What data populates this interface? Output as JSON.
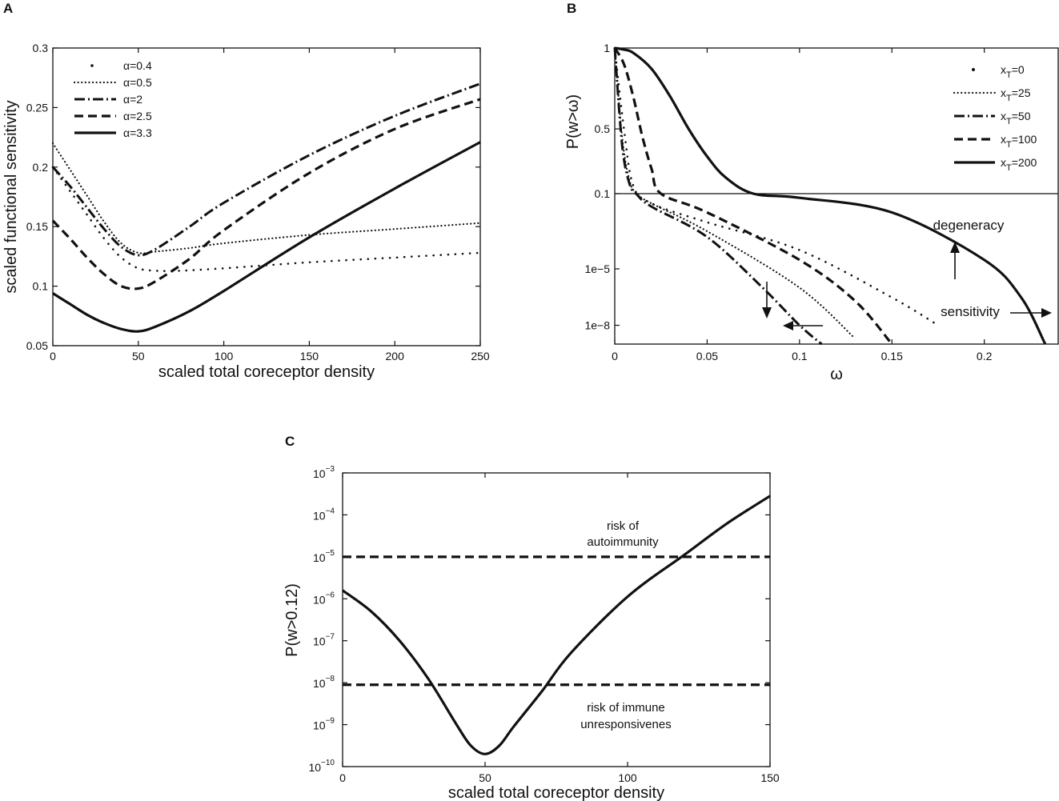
{
  "figure": {
    "labels": [
      "A",
      "B",
      "C"
    ]
  },
  "chart_data": [
    {
      "id": "A",
      "type": "line",
      "xlabel": "scaled total coreceptor density",
      "ylabel": "scaled functional sensitivity",
      "xlim": [
        0,
        250
      ],
      "ylim": [
        0.05,
        0.3
      ],
      "xticks": [
        0,
        50,
        100,
        150,
        200,
        250
      ],
      "yticks": [
        0.05,
        0.1,
        0.15,
        0.2,
        0.25,
        0.3
      ],
      "xticklabels": [
        "0",
        "50",
        "100",
        "150",
        "200",
        "250"
      ],
      "yticklabels": [
        "0.05",
        "0.1",
        "0.15",
        "0.2",
        "0.25",
        "0.3"
      ],
      "legend_position": "top-left",
      "series": [
        {
          "name": "α=0.4",
          "style": "dot",
          "x": [
            0,
            10,
            20,
            30,
            40,
            50,
            60,
            75,
            100,
            150,
            200,
            250
          ],
          "y": [
            0.2,
            0.18,
            0.16,
            0.14,
            0.124,
            0.115,
            0.113,
            0.113,
            0.115,
            0.12,
            0.124,
            0.128
          ]
        },
        {
          "name": "α=0.5",
          "style": "dotted",
          "x": [
            0,
            10,
            20,
            30,
            40,
            50,
            60,
            80,
            100,
            150,
            200,
            250
          ],
          "y": [
            0.22,
            0.198,
            0.176,
            0.154,
            0.136,
            0.128,
            0.129,
            0.132,
            0.136,
            0.143,
            0.148,
            0.153
          ]
        },
        {
          "name": "α=2",
          "style": "dashdot",
          "x": [
            0,
            10,
            20,
            30,
            40,
            50,
            60,
            80,
            100,
            150,
            200,
            250
          ],
          "y": [
            0.2,
            0.184,
            0.166,
            0.148,
            0.133,
            0.126,
            0.131,
            0.15,
            0.17,
            0.21,
            0.243,
            0.27
          ]
        },
        {
          "name": "α=2.5",
          "style": "dashed",
          "x": [
            0,
            10,
            20,
            30,
            40,
            50,
            60,
            80,
            100,
            150,
            200,
            250
          ],
          "y": [
            0.155,
            0.14,
            0.124,
            0.11,
            0.1,
            0.098,
            0.104,
            0.123,
            0.147,
            0.195,
            0.232,
            0.257
          ]
        },
        {
          "name": "α=3.3",
          "style": "solid",
          "x": [
            0,
            10,
            20,
            30,
            40,
            50,
            60,
            80,
            100,
            150,
            200,
            250
          ],
          "y": [
            0.094,
            0.085,
            0.076,
            0.069,
            0.064,
            0.062,
            0.066,
            0.079,
            0.096,
            0.141,
            0.182,
            0.221
          ]
        }
      ]
    },
    {
      "id": "B",
      "type": "line",
      "xlabel": "ω",
      "ylabel": "P(w>ω)",
      "xlim": [
        0,
        0.24
      ],
      "xticks": [
        0,
        0.05,
        0.1,
        0.15,
        0.2
      ],
      "xticklabels": [
        "0",
        "0.05",
        "0.1",
        "0.15",
        "0.2"
      ],
      "upper_scale": {
        "type": "linear",
        "range": [
          0.1,
          1
        ],
        "ticks": [
          0.1,
          0.5,
          1
        ],
        "ticklabels": [
          "0.1",
          "0.5",
          "1"
        ]
      },
      "lower_scale": {
        "type": "log",
        "range": [
          1e-09,
          0.1
        ],
        "ticks": [
          1e-05,
          1e-08
        ],
        "ticklabels": [
          "1e−5",
          "1e−8"
        ]
      },
      "legend_position": "top-right",
      "series": [
        {
          "name": "x_T=0",
          "legend_main": "x",
          "legend_sub": "T",
          "legend_rest": "=0",
          "style": "dot",
          "x": [
            0,
            0.005,
            0.01,
            0.02,
            0.05,
            0.1,
            0.15,
            0.175
          ],
          "y": [
            1.0,
            0.5,
            0.15,
            0.03,
            0.003,
            0.0001,
            3e-07,
            1e-08
          ]
        },
        {
          "name": "x_T=25",
          "legend_main": "x",
          "legend_sub": "T",
          "legend_rest": "=25",
          "style": "dotted",
          "x": [
            0,
            0.004,
            0.008,
            0.012,
            0.02,
            0.05,
            0.1,
            0.13
          ],
          "y": [
            1.0,
            0.45,
            0.18,
            0.1,
            0.03,
            0.001,
            1e-06,
            2e-09
          ]
        },
        {
          "name": "x_T=50",
          "legend_main": "x",
          "legend_sub": "T",
          "legend_rest": "=50",
          "style": "dashdot",
          "x": [
            0,
            0.004,
            0.008,
            0.012,
            0.02,
            0.05,
            0.08,
            0.1,
            0.112
          ],
          "y": [
            1.0,
            0.4,
            0.16,
            0.09,
            0.02,
            0.0005,
            1e-06,
            1e-08,
            1e-09
          ]
        },
        {
          "name": "x_T=100",
          "legend_main": "x",
          "legend_sub": "T",
          "legend_rest": "=100",
          "style": "dashed",
          "x": [
            0,
            0.005,
            0.01,
            0.015,
            0.02,
            0.025,
            0.05,
            0.1,
            0.13,
            0.15
          ],
          "y": [
            1.0,
            0.9,
            0.7,
            0.45,
            0.25,
            0.1,
            0.01,
            3e-05,
            2e-07,
            1e-09
          ]
        },
        {
          "name": "x_T=200",
          "legend_main": "x",
          "legend_sub": "T",
          "legend_rest": "=200",
          "style": "solid",
          "x": [
            0,
            0.005,
            0.01,
            0.02,
            0.03,
            0.04,
            0.05,
            0.06,
            0.075,
            0.1,
            0.15,
            0.2,
            0.22,
            0.233
          ],
          "y": [
            1.0,
            0.99,
            0.97,
            0.87,
            0.7,
            0.5,
            0.33,
            0.2,
            0.1,
            0.06,
            0.01,
            3e-05,
            3e-07,
            1e-09
          ]
        }
      ],
      "annotations": [
        "degeneracy",
        "sensitivity"
      ]
    },
    {
      "id": "C",
      "type": "line",
      "xlabel": "scaled total coreceptor density",
      "ylabel": "P(w>0.12)",
      "xlim": [
        0,
        150
      ],
      "ylim_exp": [
        -10,
        -3
      ],
      "xticks": [
        0,
        50,
        100,
        150
      ],
      "xticklabels": [
        "0",
        "50",
        "100",
        "150"
      ],
      "yticks_exp": [
        -10,
        -9,
        -8,
        -7,
        -6,
        -5,
        -4,
        -3
      ],
      "ytick_base": "10",
      "ytick_exps": [
        "−10",
        "−9",
        "−8",
        "−7",
        "−6",
        "−5",
        "−4",
        "−3"
      ],
      "scale": "log",
      "series": [
        {
          "name": "P(w>0.12)",
          "style": "solid",
          "x": [
            0,
            10,
            20,
            30,
            40,
            45,
            50,
            55,
            60,
            70,
            80,
            100,
            120,
            135,
            150
          ],
          "y_exp": [
            -5.8,
            -6.3,
            -7.0,
            -7.9,
            -9.0,
            -9.5,
            -9.7,
            -9.5,
            -9.05,
            -8.2,
            -7.3,
            -5.95,
            -4.95,
            -4.2,
            -3.55
          ]
        },
        {
          "name": "risk of autoimmunity threshold",
          "style": "dashed",
          "x": [
            0,
            150
          ],
          "y_exp": [
            -5,
            -5
          ]
        },
        {
          "name": "risk of immune unresponsiveness threshold",
          "style": "dashed",
          "x": [
            0,
            150
          ],
          "y_exp": [
            -8.05,
            -8.05
          ]
        }
      ],
      "annotations": {
        "top": [
          "risk of",
          "autoimmunity"
        ],
        "bottom": [
          "risk of immune",
          "unresponsivenes"
        ]
      }
    }
  ]
}
